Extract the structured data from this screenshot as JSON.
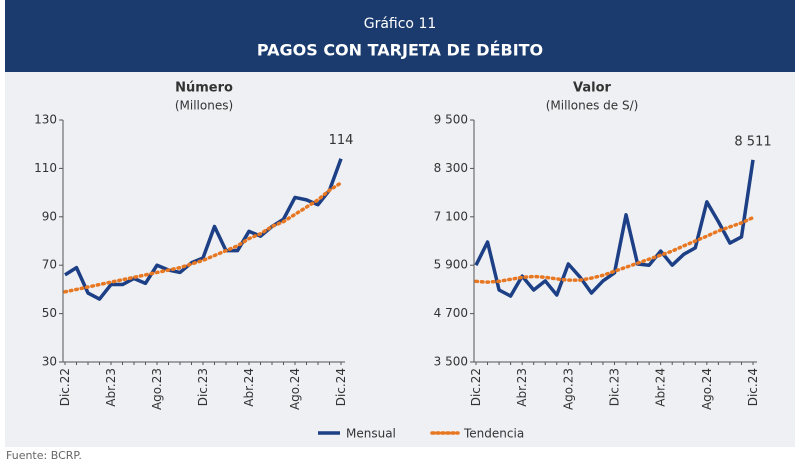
{
  "header": {
    "label": "Gráfico 11",
    "title": "PAGOS CON TARJETA DE DÉBITO"
  },
  "source": "Fuente: BCRP.",
  "chart_data": [
    {
      "type": "line",
      "title": "Número",
      "subtitle": "(Millones)",
      "categories": [
        "Dic.22",
        null,
        null,
        null,
        "Abr.23",
        null,
        null,
        null,
        "Ago.23",
        null,
        null,
        null,
        "Dic.23",
        null,
        null,
        null,
        "Abr.24",
        null,
        null,
        null,
        "Ago.24",
        null,
        null,
        null,
        "Dic.24"
      ],
      "series": [
        {
          "name": "Mensual",
          "color": "#1d3f85",
          "style": "solid",
          "values": [
            66,
            69,
            58.5,
            56,
            62,
            62,
            64.5,
            62.5,
            70,
            68,
            67,
            71,
            73,
            86,
            76,
            76,
            84,
            82,
            86,
            89,
            98,
            97,
            95,
            101,
            114
          ]
        },
        {
          "name": "Tendencia",
          "color": "#e87722",
          "style": "dotted",
          "values": [
            59,
            60,
            61,
            62,
            63,
            64,
            65,
            66,
            67,
            68,
            69,
            70.5,
            72,
            74,
            76,
            78,
            81,
            83,
            86,
            88,
            91,
            94,
            97,
            101,
            104
          ]
        }
      ],
      "ylim": [
        30,
        130
      ],
      "yticks": [
        30,
        50,
        70,
        90,
        110,
        130
      ]
    },
    {
      "type": "line",
      "title": "Valor",
      "subtitle": "(Millones de S/)",
      "categories": [
        "Dic.22",
        null,
        null,
        null,
        "Abr.23",
        null,
        null,
        null,
        "Ago.23",
        null,
        null,
        null,
        "Dic.23",
        null,
        null,
        null,
        "Abr.24",
        null,
        null,
        null,
        "Ago.24",
        null,
        null,
        null,
        "Dic.24"
      ],
      "series": [
        {
          "name": "Mensual",
          "color": "#1d3f85",
          "style": "solid",
          "values": [
            5900,
            6475,
            5285,
            5135,
            5630,
            5285,
            5510,
            5160,
            5930,
            5610,
            5210,
            5510,
            5710,
            7150,
            5930,
            5900,
            6250,
            5900,
            6170,
            6330,
            7470,
            6980,
            6450,
            6600,
            8511
          ],
          "value_labels": [
            null,
            null,
            null,
            null,
            null,
            null,
            null,
            null,
            null,
            null,
            null,
            null,
            null,
            null,
            null,
            null,
            null,
            null,
            null,
            null,
            null,
            null,
            null,
            null,
            "8 511"
          ]
        },
        {
          "name": "Tendencia",
          "color": "#e87722",
          "style": "dotted",
          "values": [
            5500,
            5480,
            5500,
            5550,
            5600,
            5620,
            5600,
            5560,
            5530,
            5530,
            5580,
            5650,
            5750,
            5850,
            5950,
            6050,
            6150,
            6250,
            6380,
            6500,
            6620,
            6750,
            6850,
            6950,
            7080
          ]
        }
      ],
      "ylim": [
        3500,
        9500
      ],
      "yticks": [
        {
          "value": 3500,
          "label": "3 500"
        },
        {
          "value": 4700,
          "label": "4 700"
        },
        {
          "value": 5900,
          "label": "5 900"
        },
        {
          "value": 7100,
          "label": "7 100"
        },
        {
          "value": 8300,
          "label": "8 300"
        },
        {
          "value": 9500,
          "label": "9 500"
        }
      ]
    }
  ]
}
